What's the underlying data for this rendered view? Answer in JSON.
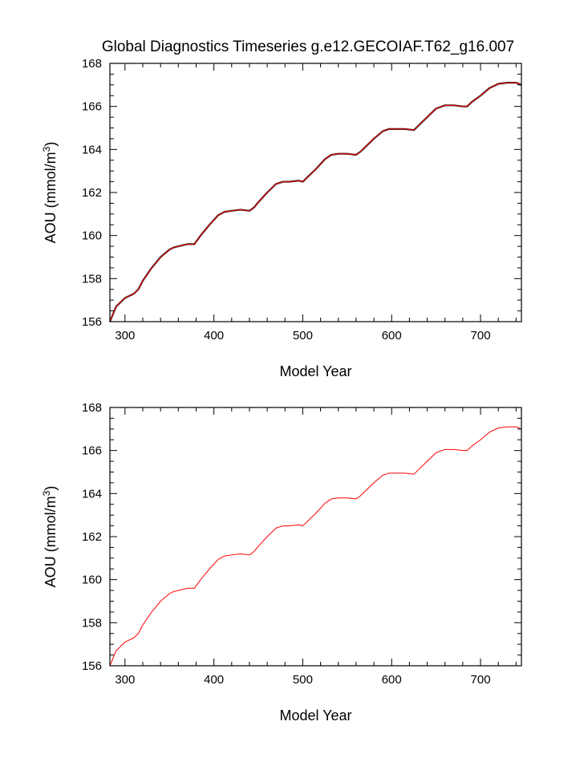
{
  "figure_title": "Global Diagnostics Timeseries g.e12.GECOIAF.T62_g16.007",
  "chart_data": [
    {
      "type": "line",
      "panel": "top",
      "xlabel": "Model Year",
      "ylabel": "AOU (mmol/m³)",
      "xlim": [
        283,
        746
      ],
      "ylim": [
        156,
        168
      ],
      "xticks": [
        300,
        400,
        500,
        600,
        700
      ],
      "yticks": [
        156,
        158,
        160,
        162,
        164,
        166,
        168
      ],
      "grid": false,
      "series": [
        {
          "color": "#222222",
          "x": [
            283,
            290,
            300,
            310,
            315,
            320,
            330,
            340,
            350,
            355,
            360,
            370,
            378,
            385,
            395,
            405,
            412,
            420,
            430,
            440,
            445,
            450,
            460,
            470,
            478,
            485,
            495,
            500,
            505,
            515,
            525,
            532,
            540,
            550,
            560,
            565,
            570,
            580,
            590,
            597,
            605,
            615,
            625,
            630,
            640,
            650,
            660,
            670,
            680,
            685,
            690,
            700,
            710,
            720,
            730,
            740,
            746
          ],
          "y": [
            156.0,
            156.7,
            157.1,
            157.3,
            157.5,
            157.9,
            158.5,
            159.0,
            159.35,
            159.45,
            159.5,
            159.6,
            159.6,
            160.0,
            160.5,
            160.95,
            161.1,
            161.15,
            161.2,
            161.15,
            161.3,
            161.55,
            162.0,
            162.4,
            162.5,
            162.5,
            162.55,
            162.5,
            162.7,
            163.1,
            163.55,
            163.75,
            163.8,
            163.8,
            163.75,
            163.9,
            164.1,
            164.5,
            164.85,
            164.95,
            164.95,
            164.95,
            164.9,
            165.1,
            165.5,
            165.9,
            166.05,
            166.05,
            166.0,
            166.0,
            166.2,
            166.5,
            166.85,
            167.05,
            167.1,
            167.1,
            167.0
          ]
        },
        {
          "color": "#ff0000",
          "x": [
            283,
            290,
            300,
            310,
            315,
            320,
            330,
            340,
            350,
            355,
            360,
            370,
            378,
            385,
            395,
            405,
            412,
            420,
            430,
            440,
            445,
            450,
            460,
            470,
            478,
            485,
            495,
            500,
            505,
            515,
            525,
            532,
            540,
            550,
            560,
            565,
            570,
            580,
            590,
            597,
            605,
            615,
            625,
            630,
            640,
            650,
            660,
            670,
            680,
            685,
            690,
            700,
            710,
            720,
            730,
            740,
            746
          ],
          "y": [
            156.0,
            156.7,
            157.1,
            157.3,
            157.5,
            157.9,
            158.5,
            159.0,
            159.35,
            159.45,
            159.5,
            159.6,
            159.6,
            160.0,
            160.5,
            160.95,
            161.1,
            161.15,
            161.2,
            161.15,
            161.3,
            161.55,
            162.0,
            162.4,
            162.5,
            162.5,
            162.55,
            162.5,
            162.7,
            163.1,
            163.55,
            163.75,
            163.8,
            163.8,
            163.75,
            163.9,
            164.1,
            164.5,
            164.85,
            164.95,
            164.95,
            164.95,
            164.9,
            165.1,
            165.5,
            165.9,
            166.05,
            166.05,
            166.0,
            166.0,
            166.2,
            166.5,
            166.85,
            167.05,
            167.1,
            167.1,
            167.0
          ]
        }
      ]
    },
    {
      "type": "line",
      "panel": "bottom",
      "xlabel": "Model Year",
      "ylabel": "AOU (mmol/m³)",
      "xlim": [
        283,
        746
      ],
      "ylim": [
        156,
        168
      ],
      "xticks": [
        300,
        400,
        500,
        600,
        700
      ],
      "yticks": [
        156,
        158,
        160,
        162,
        164,
        166,
        168
      ],
      "grid": false,
      "series": [
        {
          "color": "#ff0000",
          "x": [
            283,
            290,
            300,
            310,
            315,
            320,
            330,
            340,
            350,
            355,
            360,
            370,
            378,
            385,
            395,
            405,
            412,
            420,
            430,
            440,
            445,
            450,
            460,
            470,
            478,
            485,
            495,
            500,
            505,
            515,
            525,
            532,
            540,
            550,
            560,
            565,
            570,
            580,
            590,
            597,
            605,
            615,
            625,
            630,
            640,
            650,
            660,
            670,
            680,
            685,
            690,
            700,
            710,
            720,
            730,
            740,
            746
          ],
          "y": [
            156.0,
            156.7,
            157.1,
            157.3,
            157.5,
            157.9,
            158.5,
            159.0,
            159.35,
            159.45,
            159.5,
            159.6,
            159.6,
            160.0,
            160.5,
            160.95,
            161.1,
            161.15,
            161.2,
            161.15,
            161.3,
            161.55,
            162.0,
            162.4,
            162.5,
            162.5,
            162.55,
            162.5,
            162.7,
            163.1,
            163.55,
            163.75,
            163.8,
            163.8,
            163.75,
            163.9,
            164.1,
            164.5,
            164.85,
            164.95,
            164.95,
            164.95,
            164.9,
            165.1,
            165.5,
            165.9,
            166.05,
            166.05,
            166.0,
            166.0,
            166.2,
            166.5,
            166.85,
            167.05,
            167.1,
            167.1,
            167.0
          ]
        }
      ]
    }
  ]
}
